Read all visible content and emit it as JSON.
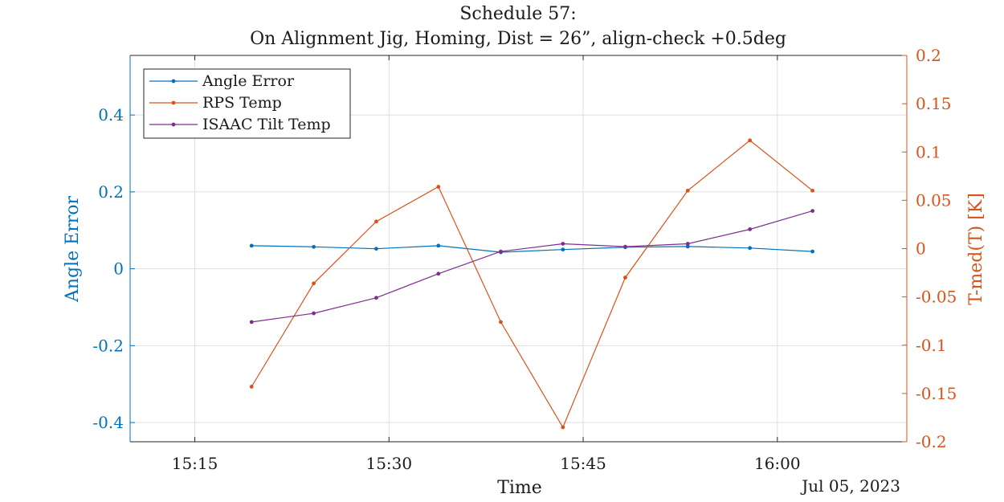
{
  "chart_data": {
    "type": "line",
    "title": "Schedule 57:",
    "subtitle": "On Alignment Jig, Homing, Dist = 26”, align-check +0.5deg",
    "xlabel": "Time",
    "date_label": "Jul 05, 2023",
    "ylabel_left": "Angle Error",
    "ylabel_right": "T-med(T) [K]",
    "x_ticks": [
      "15:15",
      "15:30",
      "15:45",
      "16:00"
    ],
    "x_tick_values": [
      15.25,
      15.5,
      15.75,
      16.0
    ],
    "xlim": [
      15.1667,
      16.1667
    ],
    "ylim_left": [
      -0.45,
      0.555
    ],
    "ylim_right": [
      -0.2,
      0.2
    ],
    "y_left_ticks": [
      "-0.4",
      "-0.2",
      "0",
      "0.2",
      "0.4"
    ],
    "y_left_tick_values": [
      -0.4,
      -0.2,
      0,
      0.2,
      0.4
    ],
    "y_right_ticks": [
      "-0.2",
      "-0.15",
      "-0.1",
      "-0.05",
      "0",
      "0.05",
      "0.1",
      "0.15",
      "0.2"
    ],
    "y_right_tick_values": [
      -0.2,
      -0.15,
      -0.1,
      -0.05,
      0,
      0.05,
      0.1,
      0.15,
      0.2
    ],
    "grid": true,
    "legend_position": "top-left",
    "colors": {
      "left_axis": "#0072BD",
      "right_axis": "#D95319",
      "series3": "#7E2F8E"
    },
    "x": [
      15.3231,
      15.4031,
      15.4836,
      15.5636,
      15.6439,
      15.7239,
      15.8042,
      15.8847,
      15.9647,
      16.0453
    ],
    "series": [
      {
        "name": "Angle Error",
        "axis": "left",
        "color": "#0072BD",
        "values": [
          0.06,
          0.057,
          0.052,
          0.06,
          0.043,
          0.05,
          0.056,
          0.058,
          0.054,
          0.045
        ]
      },
      {
        "name": "RPS Temp",
        "axis": "right",
        "color": "#D95319",
        "values": [
          -0.143,
          -0.036,
          0.028,
          0.064,
          -0.076,
          -0.185,
          -0.03,
          0.06,
          0.112,
          0.06
        ]
      },
      {
        "name": "ISAAC Tilt Temp",
        "axis": "right",
        "color": "#7E2F8E",
        "values": [
          -0.076,
          -0.067,
          -0.051,
          -0.026,
          -0.003,
          0.005,
          0.002,
          0.005,
          0.02,
          0.039
        ]
      }
    ]
  }
}
